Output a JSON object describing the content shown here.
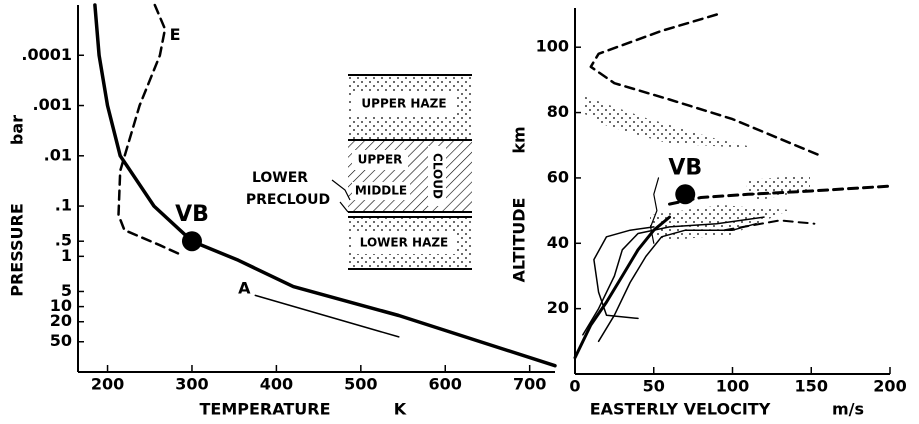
{
  "chart_data": [
    {
      "type": "line",
      "x_label": "TEMPERATURE",
      "x_unit": "K",
      "y_label": "PRESSURE",
      "y_unit": "bar",
      "log_y": true,
      "y_inverted": true,
      "xlim": [
        165,
        730
      ],
      "xticks": [
        200,
        300,
        400,
        500,
        600,
        700
      ],
      "ylim": [
        1e-05,
        200
      ],
      "yticks": [
        {
          "value": 0.0001,
          "label": ".0001"
        },
        {
          "value": 0.001,
          "label": ".001"
        },
        {
          "value": 0.01,
          "label": ".01"
        },
        {
          "value": 0.1,
          "label": ".1"
        },
        {
          "value": 0.5,
          "label": ".5"
        },
        1,
        5,
        10,
        20,
        50
      ],
      "series": [
        {
          "color": "#000",
          "width": 3.5,
          "dashed": false,
          "x": [
            185,
            190,
            200,
            215,
            255,
            300,
            355,
            420,
            545,
            730
          ],
          "values": [
            1e-05,
            0.0001,
            0.001,
            0.01,
            0.1,
            0.5,
            1.2,
            4,
            15,
            150
          ]
        },
        {
          "color": "#000",
          "width": 2.5,
          "dashed": true,
          "x": [
            256,
            268,
            262,
            238,
            215,
            213,
            220,
            262,
            285
          ],
          "values": [
            1e-05,
            3e-05,
            0.0001,
            0.001,
            0.02,
            0.15,
            0.3,
            0.6,
            0.9
          ]
        },
        {
          "color": "#000",
          "width": 1.5,
          "dashed": false,
          "x": [
            375,
            545
          ],
          "values": [
            6,
            40
          ]
        }
      ],
      "markers": [
        {
          "label": "VB",
          "x": 300,
          "y": 0.5
        }
      ],
      "annotations": [
        {
          "text": "E",
          "x": 280,
          "y": 4e-05
        },
        {
          "text": "A",
          "x": 362,
          "y": 4.5
        }
      ]
    },
    {
      "type": "line",
      "x_label": "EASTERLY VELOCITY",
      "x_unit": "m/s",
      "y_label": "ALTITUDE",
      "y_unit": "km",
      "log_y": false,
      "y_inverted": false,
      "xlim": [
        0,
        200
      ],
      "xticks": [
        0,
        50,
        100,
        150,
        200
      ],
      "ylim": [
        0,
        112
      ],
      "yticks": [
        20,
        40,
        60,
        80,
        100
      ],
      "series": [
        {
          "color": "#000",
          "width": 2.5,
          "dashed": true,
          "x": [
            90,
            55,
            15,
            10,
            25,
            60,
            100,
            120,
            155
          ],
          "values": [
            110,
            105,
            98,
            94,
            89,
            84,
            78,
            74,
            67
          ]
        },
        {
          "color": "#000",
          "width": 3,
          "dashed": true,
          "x": [
            60,
            80,
            110,
            150,
            200
          ],
          "values": [
            52,
            54,
            55,
            56,
            57.5
          ]
        },
        {
          "color": "#000",
          "width": 2,
          "dashed": true,
          "x": [
            95,
            130,
            152
          ],
          "values": [
            44,
            47,
            46
          ]
        },
        {
          "color": "#000",
          "width": 3,
          "dashed": false,
          "x": [
            0,
            10,
            20,
            30,
            40,
            50,
            60
          ],
          "values": [
            5,
            15,
            22,
            30,
            38,
            44,
            48
          ]
        },
        {
          "color": "#000",
          "width": 1.5,
          "dashed": false,
          "x": [
            5,
            15,
            25,
            30,
            40,
            60,
            90,
            120
          ],
          "values": [
            12,
            20,
            30,
            38,
            43,
            45,
            46,
            48
          ]
        },
        {
          "color": "#000",
          "width": 1.5,
          "dashed": false,
          "x": [
            15,
            25,
            35,
            45,
            55,
            70,
            100,
            115
          ],
          "values": [
            10,
            18,
            28,
            36,
            42,
            44,
            44,
            46
          ]
        },
        {
          "color": "#000",
          "width": 1.5,
          "dashed": false,
          "x": [
            40,
            20,
            15,
            12,
            20,
            35,
            50
          ],
          "values": [
            17,
            18,
            25,
            35,
            42,
            44,
            45
          ]
        },
        {
          "color": "#000",
          "width": 1.2,
          "dashed": false,
          "x": [
            50,
            48,
            52,
            50,
            53
          ],
          "values": [
            40,
            45,
            50,
            55,
            60
          ]
        }
      ],
      "markers": [
        {
          "label": "VB",
          "x": 70,
          "y": 55
        }
      ],
      "annotations": []
    }
  ],
  "cloud_diagram": {
    "labels": [
      "UPPER HAZE",
      "UPPER",
      "CLOUD",
      "MIDDLE",
      "LOWER",
      "PRECLOUD",
      "LOWER HAZE"
    ]
  }
}
